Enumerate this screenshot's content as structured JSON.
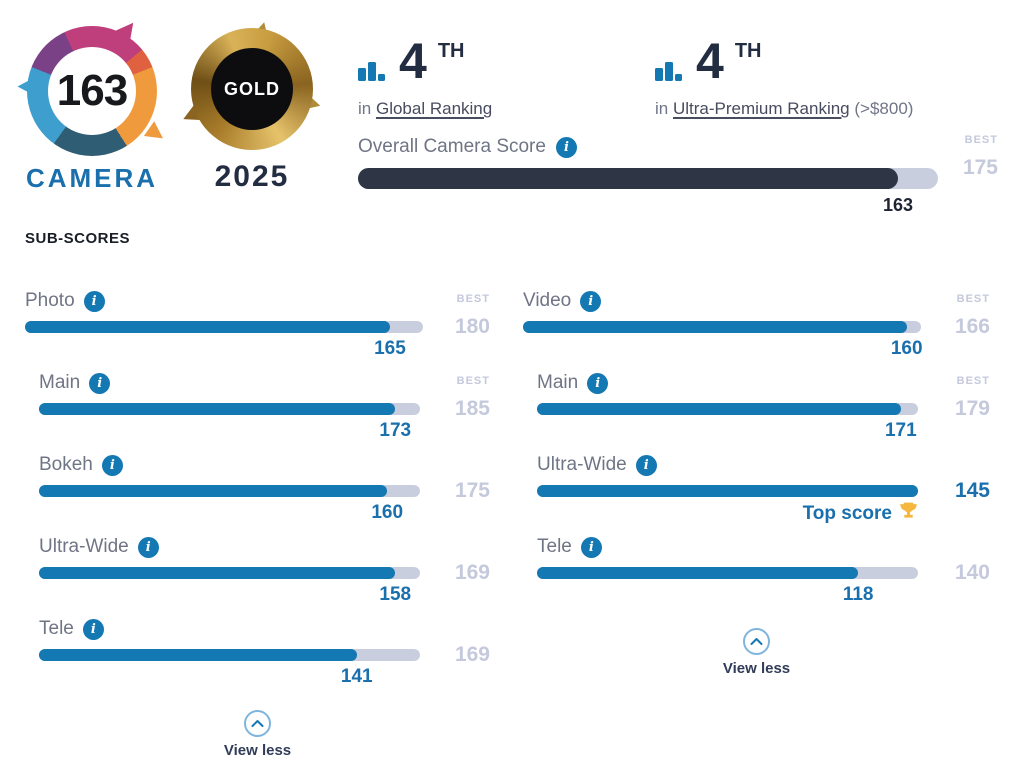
{
  "header": {
    "logo": {
      "score": "163",
      "label": "CAMERA"
    },
    "badge": {
      "label": "GOLD",
      "year": "2025"
    },
    "rankings": [
      {
        "rank": "4",
        "ordinal": "TH",
        "prefix": "in",
        "link": "Global Ranking",
        "note": ""
      },
      {
        "rank": "4",
        "ordinal": "TH",
        "prefix": "in",
        "link": "Ultra-Premium Ranking",
        "note": "(>$800)"
      }
    ]
  },
  "subscores_title": "SUB-SCORES",
  "labels": {
    "best": "BEST",
    "view_less": "View less",
    "top_score": "Top score",
    "info_glyph": "i"
  },
  "chart_data": {
    "type": "bar",
    "title": "SUB-SCORES",
    "overall": {
      "label": "Overall Camera Score",
      "value": 163,
      "best": 175
    },
    "columns": [
      {
        "rows": [
          {
            "label": "Photo",
            "value": 165,
            "best": 180,
            "show_best_label": true,
            "indent": false
          },
          {
            "label": "Main",
            "value": 173,
            "best": 185,
            "show_best_label": true,
            "indent": true
          },
          {
            "label": "Bokeh",
            "value": 160,
            "best": 175,
            "show_best_label": false,
            "indent": true
          },
          {
            "label": "Ultra-Wide",
            "value": 158,
            "best": 169,
            "show_best_label": false,
            "indent": true
          },
          {
            "label": "Tele",
            "value": 141,
            "best": 169,
            "show_best_label": false,
            "indent": true
          }
        ]
      },
      {
        "rows": [
          {
            "label": "Video",
            "value": 160,
            "best": 166,
            "show_best_label": true,
            "indent": false
          },
          {
            "label": "Main",
            "value": 171,
            "best": 179,
            "show_best_label": true,
            "indent": true
          },
          {
            "label": "Ultra-Wide",
            "value": 145,
            "best": 145,
            "show_best_label": false,
            "indent": true,
            "top_score": true
          },
          {
            "label": "Tele",
            "value": 118,
            "best": 140,
            "show_best_label": false,
            "indent": true
          }
        ]
      }
    ]
  },
  "colors": {
    "bar_blue": "#1478b3",
    "bar_track": "#c9cede",
    "overall_fill": "#2e3545",
    "value_blue": "#1a6fad",
    "best_gray": "#c4c9dc",
    "label_gray": "#6f7585",
    "navy": "#232d42",
    "trophy_gold": "#f5b73d"
  }
}
